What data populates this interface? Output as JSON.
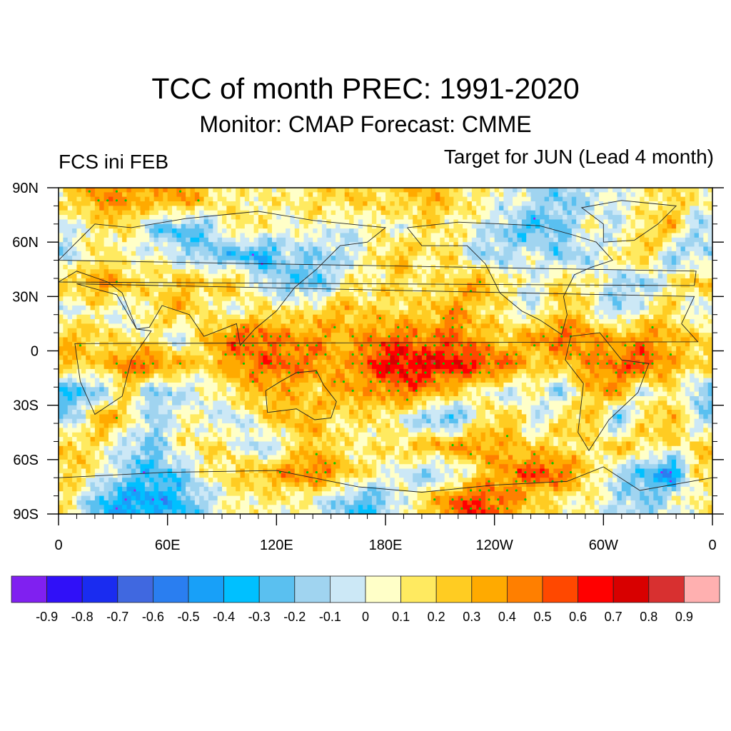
{
  "header": {
    "title": "TCC of month PREC: 1991-2020",
    "subtitle": "Monitor: CMAP   Forecast: CMME",
    "left_label": "FCS ini FEB",
    "right_label": "Target for JUN (Lead 4 month)"
  },
  "chart_data": {
    "type": "heatmap",
    "title": "TCC of month PREC: 1991-2020",
    "subtitle": "Monitor: CMAP   Forecast: CMME",
    "left_annotation": "FCS ini FEB",
    "right_annotation": "Target for JUN (Lead 4 month)",
    "xlabel": "",
    "ylabel": "",
    "xlim": [
      0,
      360
    ],
    "ylim": [
      -90,
      90
    ],
    "x_ticks": [
      {
        "value": 0,
        "label": "0"
      },
      {
        "value": 60,
        "label": "60E"
      },
      {
        "value": 120,
        "label": "120E"
      },
      {
        "value": 180,
        "label": "180E"
      },
      {
        "value": 240,
        "label": "120W"
      },
      {
        "value": 300,
        "label": "60W"
      },
      {
        "value": 360,
        "label": "0"
      }
    ],
    "y_ticks": [
      {
        "value": 90,
        "label": "90N"
      },
      {
        "value": 60,
        "label": "60N"
      },
      {
        "value": 30,
        "label": "30N"
      },
      {
        "value": 0,
        "label": "0"
      },
      {
        "value": -30,
        "label": "30S"
      },
      {
        "value": -60,
        "label": "60S"
      },
      {
        "value": -90,
        "label": "90S"
      }
    ],
    "grid_lon_step": 15,
    "grid_lat_step": 15,
    "grid_lats": [
      82.5,
      67.5,
      52.5,
      37.5,
      22.5,
      7.5,
      -7.5,
      -22.5,
      -37.5,
      -52.5,
      -67.5,
      -82.5
    ],
    "grid_lons": [
      7.5,
      22.5,
      37.5,
      52.5,
      67.5,
      82.5,
      97.5,
      112.5,
      127.5,
      142.5,
      157.5,
      172.5,
      187.5,
      202.5,
      217.5,
      232.5,
      247.5,
      262.5,
      277.5,
      292.5,
      307.5,
      322.5,
      337.5,
      352.5
    ],
    "values": [
      [
        0.2,
        0.4,
        0.4,
        0.3,
        0.4,
        0.2,
        0.1,
        0.1,
        0.1,
        0.2,
        0.2,
        0.2,
        0.2,
        0.3,
        0.2,
        0.1,
        0.0,
        -0.1,
        -0.2,
        -0.1,
        0.0,
        0.1,
        0.2,
        0.1
      ],
      [
        0.0,
        0.1,
        0.2,
        -0.2,
        -0.3,
        -0.2,
        0.2,
        0.1,
        0.0,
        0.1,
        -0.1,
        0.1,
        0.0,
        0.2,
        0.1,
        0.0,
        -0.2,
        -0.3,
        -0.2,
        0.1,
        -0.1,
        0.2,
        0.3,
        -0.2
      ],
      [
        -0.1,
        0.2,
        0.0,
        0.1,
        -0.1,
        -0.2,
        -0.3,
        -0.4,
        -0.1,
        -0.2,
        -0.1,
        0.1,
        0.3,
        0.1,
        0.2,
        -0.2,
        -0.1,
        0.0,
        -0.2,
        -0.1,
        0.1,
        0.3,
        -0.2,
        -0.1
      ],
      [
        0.2,
        0.4,
        0.3,
        0.1,
        0.3,
        0.2,
        0.3,
        -0.1,
        -0.2,
        -0.3,
        0.1,
        0.1,
        0.2,
        0.1,
        0.2,
        0.4,
        0.1,
        0.0,
        0.2,
        0.1,
        -0.1,
        -0.2,
        0.1,
        0.3
      ],
      [
        0.0,
        0.1,
        -0.1,
        0.2,
        0.3,
        0.1,
        0.0,
        0.2,
        0.1,
        0.2,
        0.3,
        0.2,
        0.2,
        0.2,
        0.4,
        0.2,
        0.1,
        -0.1,
        0.3,
        0.1,
        -0.2,
        0.1,
        0.2,
        -0.1
      ],
      [
        0.3,
        0.2,
        0.1,
        0.1,
        -0.1,
        0.3,
        0.5,
        0.5,
        0.4,
        0.4,
        0.3,
        0.4,
        0.5,
        0.4,
        0.5,
        0.3,
        0.2,
        0.4,
        0.5,
        0.4,
        0.3,
        0.4,
        0.3,
        0.2
      ],
      [
        0.3,
        0.2,
        0.5,
        0.5,
        0.3,
        0.2,
        0.4,
        0.5,
        0.5,
        0.4,
        0.3,
        0.6,
        0.7,
        0.7,
        0.7,
        0.6,
        0.5,
        0.2,
        0.3,
        0.4,
        0.5,
        0.6,
        0.3,
        0.2
      ],
      [
        -0.3,
        -0.2,
        0.2,
        -0.2,
        -0.1,
        0.0,
        0.2,
        0.3,
        0.3,
        0.2,
        0.4,
        0.3,
        0.5,
        0.4,
        0.2,
        0.1,
        -0.1,
        0.1,
        -0.2,
        0.3,
        0.4,
        -0.1,
        0.2,
        -0.2
      ],
      [
        -0.2,
        0.4,
        0.2,
        -0.2,
        0.1,
        0.0,
        -0.1,
        0.2,
        0.3,
        0.3,
        0.1,
        0.2,
        0.0,
        -0.2,
        -0.3,
        0.1,
        0.3,
        -0.1,
        0.2,
        0.3,
        -0.3,
        0.2,
        0.3,
        -0.1
      ],
      [
        0.3,
        0.1,
        -0.1,
        -0.2,
        0.1,
        0.2,
        0.1,
        -0.2,
        0.1,
        0.3,
        0.1,
        0.1,
        0.2,
        0.3,
        0.4,
        0.4,
        0.3,
        0.2,
        0.2,
        0.1,
        0.3,
        0.2,
        0.1,
        0.2
      ],
      [
        0.2,
        0.1,
        -0.2,
        -0.3,
        -0.2,
        0.1,
        0.2,
        0.3,
        0.4,
        0.5,
        0.3,
        0.1,
        0.0,
        -0.2,
        -0.1,
        0.2,
        0.4,
        0.6,
        0.5,
        0.2,
        -0.1,
        -0.3,
        -0.5,
        0.2
      ],
      [
        0.1,
        -0.3,
        -0.4,
        -0.4,
        -0.3,
        -0.1,
        0.1,
        0.1,
        0.1,
        0.0,
        -0.2,
        -0.3,
        0.0,
        0.2,
        0.5,
        0.6,
        0.4,
        0.2,
        0.1,
        0.1,
        -0.1,
        -0.2,
        0.0,
        0.1
      ]
    ],
    "significance_markers": {
      "positive_color": "#00cc00",
      "negative_color": "#a020f0",
      "note": "green dots where TCC significantly positive, purple where significantly negative"
    },
    "colorbar": {
      "levels": [
        -0.9,
        -0.8,
        -0.7,
        -0.6,
        -0.5,
        -0.4,
        -0.3,
        -0.2,
        -0.1,
        0,
        0.1,
        0.2,
        0.3,
        0.4,
        0.5,
        0.6,
        0.7,
        0.8,
        0.9
      ],
      "labels": [
        "-0.9",
        "-0.8",
        "-0.7",
        "-0.6",
        "-0.5",
        "-0.4",
        "-0.3",
        "-0.2",
        "-0.1",
        "0",
        "0.1",
        "0.2",
        "0.3",
        "0.4",
        "0.5",
        "0.6",
        "0.7",
        "0.8",
        "0.9"
      ],
      "colors": [
        "#8020f0",
        "#3010f8",
        "#1a2cf0",
        "#4068e0",
        "#2a7ef0",
        "#18a0f8",
        "#00c0ff",
        "#5ac0f0",
        "#a0d4f0",
        "#cce8f6",
        "#ffffc8",
        "#ffea60",
        "#ffcc22",
        "#ffaa00",
        "#ff7f00",
        "#ff4800",
        "#ff0000",
        "#d80000",
        "#d83030",
        "#ffb0b0"
      ],
      "placement": "bottom"
    },
    "grid": false
  }
}
